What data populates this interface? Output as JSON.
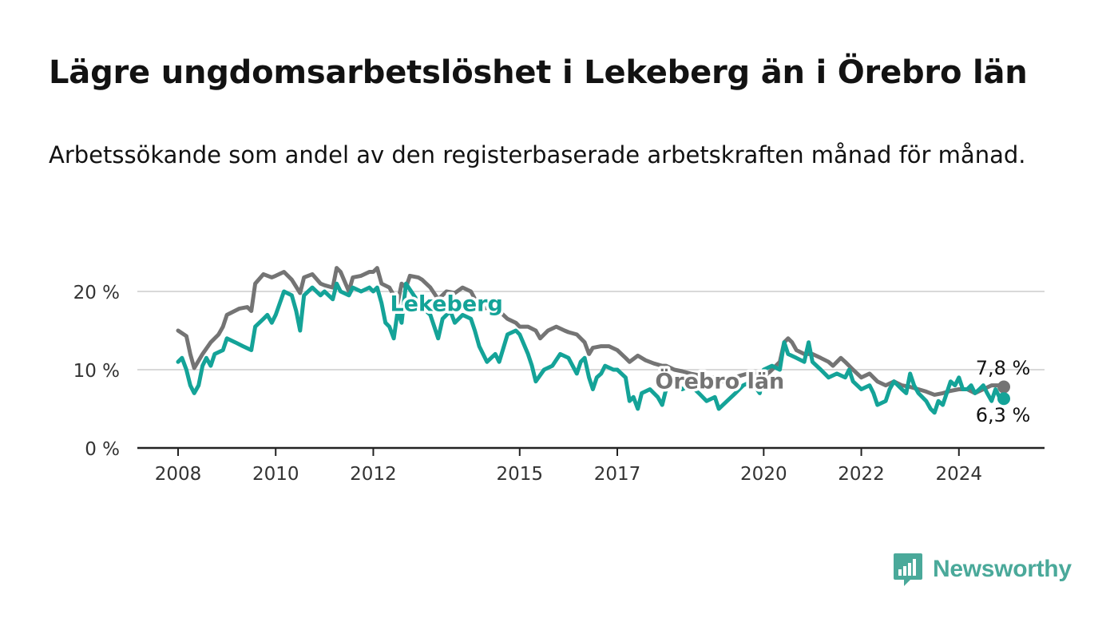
{
  "title": "Lägre ungdomsarbetslöshet i Lekeberg än i Örebro län",
  "subtitle": "Arbetssökande som andel av den registerbaserade arbetskraften månad för månad.",
  "brand": {
    "name": "Newsworthy"
  },
  "chart_data": {
    "type": "line",
    "title": "Lägre ungdomsarbetslöshet i Lekeberg än i Örebro län",
    "subtitle": "Arbetssökande som andel av den registerbaserade arbetskraften månad för månad.",
    "xlabel": "",
    "ylabel": "",
    "ylim": [
      0,
      20
    ],
    "y_ticks": [
      0,
      10,
      20
    ],
    "y_tick_labels": [
      "0 %",
      "10 %",
      "20 %"
    ],
    "x_ticks": [
      2008,
      2010,
      2012,
      2015,
      2017,
      2020,
      2022,
      2024
    ],
    "x_tick_labels": [
      "2008",
      "2010",
      "2012",
      "2015",
      "2017",
      "2020",
      "2022",
      "2024"
    ],
    "grid": "horizontal",
    "legend": "inline labels",
    "end_labels": {
      "orebro": "7,8 %",
      "lekeberg": "6,3 %"
    },
    "series": [
      {
        "name": "Örebro län",
        "color": "#747474",
        "points": [
          [
            2008.0,
            15.0
          ],
          [
            2008.17,
            14.3
          ],
          [
            2008.25,
            12.0
          ],
          [
            2008.33,
            10.2
          ],
          [
            2008.5,
            12.0
          ],
          [
            2008.67,
            13.5
          ],
          [
            2008.83,
            14.5
          ],
          [
            2008.92,
            15.5
          ],
          [
            2009.0,
            17.0
          ],
          [
            2009.25,
            17.8
          ],
          [
            2009.42,
            18.0
          ],
          [
            2009.5,
            17.5
          ],
          [
            2009.58,
            21.0
          ],
          [
            2009.75,
            22.2
          ],
          [
            2009.92,
            21.8
          ],
          [
            2010.0,
            22.0
          ],
          [
            2010.17,
            22.5
          ],
          [
            2010.33,
            21.5
          ],
          [
            2010.5,
            19.8
          ],
          [
            2010.58,
            21.8
          ],
          [
            2010.75,
            22.2
          ],
          [
            2010.92,
            21.0
          ],
          [
            2011.0,
            20.8
          ],
          [
            2011.17,
            20.5
          ],
          [
            2011.25,
            23.0
          ],
          [
            2011.33,
            22.5
          ],
          [
            2011.5,
            20.0
          ],
          [
            2011.58,
            21.8
          ],
          [
            2011.75,
            22.0
          ],
          [
            2011.92,
            22.5
          ],
          [
            2012.0,
            22.5
          ],
          [
            2012.08,
            23.0
          ],
          [
            2012.17,
            21.0
          ],
          [
            2012.33,
            20.5
          ],
          [
            2012.42,
            19.5
          ],
          [
            2012.5,
            18.5
          ],
          [
            2012.58,
            21.0
          ],
          [
            2012.67,
            20.5
          ],
          [
            2012.75,
            22.0
          ],
          [
            2012.92,
            21.8
          ],
          [
            2013.0,
            21.5
          ],
          [
            2013.17,
            20.5
          ],
          [
            2013.33,
            19.0
          ],
          [
            2013.5,
            20.0
          ],
          [
            2013.67,
            19.8
          ],
          [
            2013.83,
            20.5
          ],
          [
            2014.0,
            20.0
          ],
          [
            2014.17,
            18.0
          ],
          [
            2014.25,
            17.8
          ],
          [
            2014.42,
            18.0
          ],
          [
            2014.58,
            17.5
          ],
          [
            2014.75,
            16.5
          ],
          [
            2014.92,
            16.0
          ],
          [
            2015.0,
            15.5
          ],
          [
            2015.17,
            15.5
          ],
          [
            2015.33,
            15.0
          ],
          [
            2015.42,
            14.0
          ],
          [
            2015.58,
            15.0
          ],
          [
            2015.75,
            15.5
          ],
          [
            2015.92,
            15.0
          ],
          [
            2016.0,
            14.8
          ],
          [
            2016.17,
            14.5
          ],
          [
            2016.33,
            13.5
          ],
          [
            2016.42,
            12.0
          ],
          [
            2016.5,
            12.8
          ],
          [
            2016.67,
            13.0
          ],
          [
            2016.83,
            13.0
          ],
          [
            2017.0,
            12.5
          ],
          [
            2017.17,
            11.5
          ],
          [
            2017.25,
            11.0
          ],
          [
            2017.42,
            11.8
          ],
          [
            2017.58,
            11.2
          ],
          [
            2017.75,
            10.8
          ],
          [
            2017.92,
            10.5
          ],
          [
            2018.0,
            10.5
          ],
          [
            2018.17,
            10.0
          ],
          [
            2018.33,
            9.8
          ],
          [
            2018.5,
            9.5
          ],
          [
            2018.67,
            9.3
          ],
          [
            2018.83,
            9.0
          ],
          [
            2019.0,
            9.0
          ],
          [
            2019.17,
            8.5
          ],
          [
            2019.33,
            8.8
          ],
          [
            2019.5,
            9.2
          ],
          [
            2019.67,
            9.5
          ],
          [
            2019.83,
            9.5
          ],
          [
            2020.0,
            9.0
          ],
          [
            2020.17,
            10.0
          ],
          [
            2020.33,
            11.0
          ],
          [
            2020.42,
            13.5
          ],
          [
            2020.5,
            14.0
          ],
          [
            2020.58,
            13.5
          ],
          [
            2020.67,
            12.5
          ],
          [
            2020.83,
            12.0
          ],
          [
            2021.0,
            12.0
          ],
          [
            2021.17,
            11.5
          ],
          [
            2021.33,
            11.0
          ],
          [
            2021.42,
            10.5
          ],
          [
            2021.58,
            11.5
          ],
          [
            2021.67,
            11.0
          ],
          [
            2021.83,
            10.0
          ],
          [
            2022.0,
            9.0
          ],
          [
            2022.17,
            9.5
          ],
          [
            2022.33,
            8.5
          ],
          [
            2022.5,
            8.0
          ],
          [
            2022.67,
            8.5
          ],
          [
            2022.83,
            8.0
          ],
          [
            2023.0,
            7.8
          ],
          [
            2023.17,
            7.5
          ],
          [
            2023.33,
            7.2
          ],
          [
            2023.5,
            6.8
          ],
          [
            2023.67,
            7.0
          ],
          [
            2023.83,
            7.3
          ],
          [
            2024.0,
            7.5
          ],
          [
            2024.17,
            7.5
          ],
          [
            2024.33,
            7.0
          ],
          [
            2024.5,
            7.5
          ],
          [
            2024.67,
            8.0
          ],
          [
            2024.83,
            8.0
          ],
          [
            2024.92,
            7.8
          ]
        ]
      },
      {
        "name": "Lekeberg",
        "color": "#14a398",
        "points": [
          [
            2008.0,
            11.0
          ],
          [
            2008.08,
            11.5
          ],
          [
            2008.17,
            10.0
          ],
          [
            2008.25,
            8.0
          ],
          [
            2008.33,
            7.0
          ],
          [
            2008.42,
            8.0
          ],
          [
            2008.5,
            10.5
          ],
          [
            2008.58,
            11.5
          ],
          [
            2008.67,
            10.5
          ],
          [
            2008.75,
            12.0
          ],
          [
            2008.92,
            12.5
          ],
          [
            2009.0,
            14.0
          ],
          [
            2009.17,
            13.5
          ],
          [
            2009.33,
            13.0
          ],
          [
            2009.5,
            12.5
          ],
          [
            2009.58,
            15.5
          ],
          [
            2009.75,
            16.5
          ],
          [
            2009.83,
            17.0
          ],
          [
            2009.92,
            16.0
          ],
          [
            2010.0,
            17.0
          ],
          [
            2010.17,
            20.0
          ],
          [
            2010.33,
            19.5
          ],
          [
            2010.42,
            17.5
          ],
          [
            2010.5,
            15.0
          ],
          [
            2010.58,
            19.5
          ],
          [
            2010.75,
            20.5
          ],
          [
            2010.92,
            19.5
          ],
          [
            2011.0,
            20.0
          ],
          [
            2011.17,
            19.0
          ],
          [
            2011.25,
            21.0
          ],
          [
            2011.33,
            20.0
          ],
          [
            2011.5,
            19.5
          ],
          [
            2011.58,
            20.5
          ],
          [
            2011.75,
            20.0
          ],
          [
            2011.92,
            20.5
          ],
          [
            2012.0,
            20.0
          ],
          [
            2012.08,
            20.5
          ],
          [
            2012.17,
            18.5
          ],
          [
            2012.25,
            16.0
          ],
          [
            2012.33,
            15.5
          ],
          [
            2012.42,
            14.0
          ],
          [
            2012.5,
            17.5
          ],
          [
            2012.58,
            16.0
          ],
          [
            2012.67,
            21.0
          ],
          [
            2012.83,
            19.5
          ],
          [
            2013.0,
            18.0
          ],
          [
            2013.17,
            17.0
          ],
          [
            2013.25,
            15.5
          ],
          [
            2013.33,
            14.0
          ],
          [
            2013.42,
            16.5
          ],
          [
            2013.58,
            17.5
          ],
          [
            2013.67,
            16.0
          ],
          [
            2013.83,
            17.0
          ],
          [
            2014.0,
            16.5
          ],
          [
            2014.08,
            15.0
          ],
          [
            2014.17,
            13.0
          ],
          [
            2014.33,
            11.0
          ],
          [
            2014.5,
            12.0
          ],
          [
            2014.58,
            11.0
          ],
          [
            2014.75,
            14.5
          ],
          [
            2014.92,
            15.0
          ],
          [
            2015.0,
            14.5
          ],
          [
            2015.17,
            12.0
          ],
          [
            2015.25,
            10.5
          ],
          [
            2015.33,
            8.5
          ],
          [
            2015.5,
            10.0
          ],
          [
            2015.67,
            10.5
          ],
          [
            2015.83,
            12.0
          ],
          [
            2016.0,
            11.5
          ],
          [
            2016.17,
            9.5
          ],
          [
            2016.25,
            11.0
          ],
          [
            2016.33,
            11.5
          ],
          [
            2016.42,
            9.0
          ],
          [
            2016.5,
            7.5
          ],
          [
            2016.58,
            9.0
          ],
          [
            2016.67,
            9.5
          ],
          [
            2016.75,
            10.5
          ],
          [
            2016.92,
            10.0
          ],
          [
            2017.0,
            10.0
          ],
          [
            2017.17,
            9.0
          ],
          [
            2017.25,
            6.0
          ],
          [
            2017.33,
            6.5
          ],
          [
            2017.42,
            5.0
          ],
          [
            2017.5,
            7.0
          ],
          [
            2017.67,
            7.5
          ],
          [
            2017.83,
            6.5
          ],
          [
            2017.92,
            5.5
          ],
          [
            2018.0,
            7.5
          ],
          [
            2018.17,
            8.5
          ],
          [
            2018.33,
            7.5
          ],
          [
            2018.5,
            8.0
          ],
          [
            2018.67,
            7.0
          ],
          [
            2018.83,
            6.0
          ],
          [
            2019.0,
            6.5
          ],
          [
            2019.08,
            5.0
          ],
          [
            2019.25,
            6.0
          ],
          [
            2019.42,
            7.0
          ],
          [
            2019.58,
            8.0
          ],
          [
            2019.75,
            8.5
          ],
          [
            2019.92,
            7.0
          ],
          [
            2020.0,
            10.0
          ],
          [
            2020.17,
            10.5
          ],
          [
            2020.33,
            10.0
          ],
          [
            2020.42,
            13.5
          ],
          [
            2020.5,
            12.0
          ],
          [
            2020.67,
            11.5
          ],
          [
            2020.83,
            11.0
          ],
          [
            2020.92,
            13.5
          ],
          [
            2021.0,
            11.0
          ],
          [
            2021.17,
            10.0
          ],
          [
            2021.33,
            9.0
          ],
          [
            2021.5,
            9.5
          ],
          [
            2021.67,
            9.0
          ],
          [
            2021.75,
            10.0
          ],
          [
            2021.83,
            8.5
          ],
          [
            2022.0,
            7.5
          ],
          [
            2022.17,
            8.0
          ],
          [
            2022.25,
            7.0
          ],
          [
            2022.33,
            5.5
          ],
          [
            2022.5,
            6.0
          ],
          [
            2022.58,
            7.5
          ],
          [
            2022.67,
            8.5
          ],
          [
            2022.83,
            7.5
          ],
          [
            2022.92,
            7.0
          ],
          [
            2023.0,
            9.5
          ],
          [
            2023.08,
            8.0
          ],
          [
            2023.17,
            7.0
          ],
          [
            2023.33,
            6.0
          ],
          [
            2023.42,
            5.0
          ],
          [
            2023.5,
            4.5
          ],
          [
            2023.58,
            6.0
          ],
          [
            2023.67,
            5.5
          ],
          [
            2023.83,
            8.5
          ],
          [
            2023.92,
            8.0
          ],
          [
            2024.0,
            9.0
          ],
          [
            2024.08,
            7.5
          ],
          [
            2024.17,
            7.5
          ],
          [
            2024.25,
            8.0
          ],
          [
            2024.33,
            7.0
          ],
          [
            2024.42,
            7.5
          ],
          [
            2024.5,
            8.0
          ],
          [
            2024.58,
            7.0
          ],
          [
            2024.67,
            6.0
          ],
          [
            2024.75,
            7.5
          ],
          [
            2024.83,
            6.5
          ],
          [
            2024.92,
            6.3
          ]
        ]
      }
    ],
    "annotations": [
      {
        "text": "Lekeberg",
        "series": "Lekeberg",
        "x": 2013.5,
        "y": 18.5
      },
      {
        "text": "Örebro län",
        "series": "Örebro län",
        "x": 2019.1,
        "y": 8.6
      }
    ]
  }
}
